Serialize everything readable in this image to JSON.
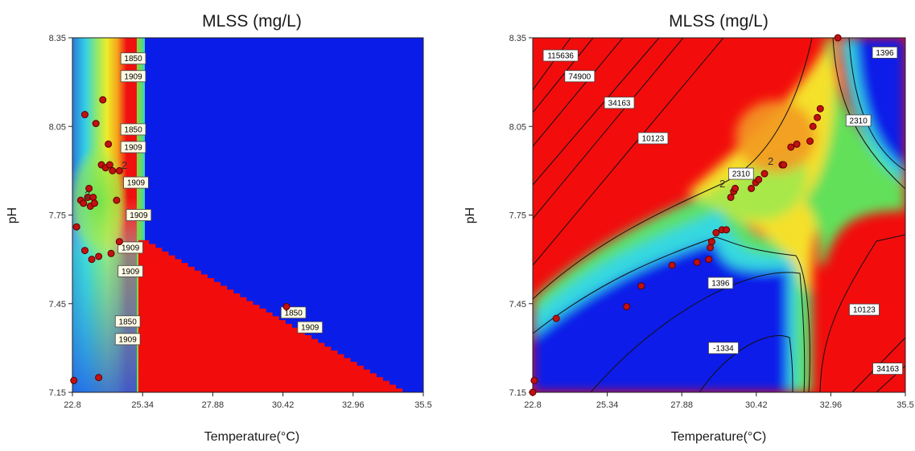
{
  "chart_data": [
    {
      "type": "heatmap",
      "title": "MLSS (mg/L)",
      "xlabel": "Temperature(°C)",
      "ylabel": "pH",
      "xlim": [
        22.8,
        35.5
      ],
      "ylim": [
        7.15,
        8.35
      ],
      "x_ticks": [
        "22.8",
        "25.34",
        "27.88",
        "30.42",
        "32.96",
        "35.5"
      ],
      "y_ticks": [
        "7.15",
        "7.45",
        "7.75",
        "8.05",
        "8.35"
      ],
      "contour_labels": [
        {
          "text": "1850",
          "x": 25.0,
          "y": 8.28
        },
        {
          "text": "1909",
          "x": 25.0,
          "y": 8.22
        },
        {
          "text": "1850",
          "x": 25.0,
          "y": 8.04
        },
        {
          "text": "1909",
          "x": 25.0,
          "y": 7.98
        },
        {
          "text": "1909",
          "x": 25.1,
          "y": 7.86
        },
        {
          "text": "1909",
          "x": 25.2,
          "y": 7.75
        },
        {
          "text": "1909",
          "x": 24.9,
          "y": 7.64
        },
        {
          "text": "1909",
          "x": 24.9,
          "y": 7.56
        },
        {
          "text": "1850",
          "x": 30.8,
          "y": 7.42
        },
        {
          "text": "1909",
          "x": 31.4,
          "y": 7.37
        },
        {
          "text": "1850",
          "x": 24.8,
          "y": 7.39
        },
        {
          "text": "1909",
          "x": 24.8,
          "y": 7.33
        }
      ],
      "points": [
        {
          "x": 22.85,
          "y": 7.19
        },
        {
          "x": 22.95,
          "y": 7.71
        },
        {
          "x": 23.1,
          "y": 7.8
        },
        {
          "x": 23.2,
          "y": 7.79
        },
        {
          "x": 23.35,
          "y": 7.81
        },
        {
          "x": 23.4,
          "y": 7.84
        },
        {
          "x": 23.45,
          "y": 7.78
        },
        {
          "x": 23.55,
          "y": 7.81
        },
        {
          "x": 23.6,
          "y": 7.79
        },
        {
          "x": 23.25,
          "y": 8.09
        },
        {
          "x": 23.65,
          "y": 8.06
        },
        {
          "x": 23.9,
          "y": 8.14
        },
        {
          "x": 24.1,
          "y": 7.99
        },
        {
          "x": 23.85,
          "y": 7.92
        },
        {
          "x": 24.0,
          "y": 7.91
        },
        {
          "x": 24.15,
          "y": 7.92
        },
        {
          "x": 24.25,
          "y": 7.9
        },
        {
          "x": 24.5,
          "y": 7.9
        },
        {
          "x": 24.4,
          "y": 7.8
        },
        {
          "x": 23.25,
          "y": 7.63
        },
        {
          "x": 23.5,
          "y": 7.6
        },
        {
          "x": 23.75,
          "y": 7.61
        },
        {
          "x": 24.2,
          "y": 7.62
        },
        {
          "x": 24.5,
          "y": 7.66
        },
        {
          "x": 23.75,
          "y": 7.2
        },
        {
          "x": 30.55,
          "y": 7.44
        }
      ],
      "annotations": [
        "2",
        "2"
      ],
      "colors": {
        "low": "#0a1de8",
        "high": "#f20c0c"
      }
    },
    {
      "type": "heatmap",
      "title": "MLSS (mg/L)",
      "xlabel": "Temperature(°C)",
      "ylabel": "pH",
      "xlim": [
        22.8,
        35.5
      ],
      "ylim": [
        7.15,
        8.35
      ],
      "x_ticks": [
        "22.8",
        "25.34",
        "27.88",
        "30.42",
        "32.96",
        "35.5"
      ],
      "y_ticks": [
        "7.15",
        "7.45",
        "7.75",
        "8.05",
        "8.35"
      ],
      "contour_labels": [
        {
          "text": "115636",
          "x": 23.75,
          "y": 8.29
        },
        {
          "text": "74900",
          "x": 24.4,
          "y": 8.22
        },
        {
          "text": "34163",
          "x": 25.75,
          "y": 8.13
        },
        {
          "text": "10123",
          "x": 26.9,
          "y": 8.01
        },
        {
          "text": "2310",
          "x": 29.9,
          "y": 7.89
        },
        {
          "text": "2310",
          "x": 33.9,
          "y": 8.07
        },
        {
          "text": "1396",
          "x": 34.8,
          "y": 8.3
        },
        {
          "text": "1396",
          "x": 29.2,
          "y": 7.52
        },
        {
          "text": "-1334",
          "x": 29.3,
          "y": 7.3
        },
        {
          "text": "10123",
          "x": 34.1,
          "y": 7.43
        },
        {
          "text": "34163",
          "x": 34.9,
          "y": 7.23
        }
      ],
      "points": [
        {
          "x": 22.8,
          "y": 7.15
        },
        {
          "x": 22.85,
          "y": 7.19
        },
        {
          "x": 23.6,
          "y": 7.4
        },
        {
          "x": 26.0,
          "y": 7.44
        },
        {
          "x": 26.5,
          "y": 7.51
        },
        {
          "x": 27.55,
          "y": 7.58
        },
        {
          "x": 28.4,
          "y": 7.59
        },
        {
          "x": 28.8,
          "y": 7.6
        },
        {
          "x": 28.85,
          "y": 7.64
        },
        {
          "x": 28.9,
          "y": 7.66
        },
        {
          "x": 29.05,
          "y": 7.69
        },
        {
          "x": 29.25,
          "y": 7.7
        },
        {
          "x": 29.4,
          "y": 7.7
        },
        {
          "x": 29.55,
          "y": 7.81
        },
        {
          "x": 29.65,
          "y": 7.83
        },
        {
          "x": 29.7,
          "y": 7.84
        },
        {
          "x": 30.25,
          "y": 7.84
        },
        {
          "x": 30.4,
          "y": 7.86
        },
        {
          "x": 30.5,
          "y": 7.87
        },
        {
          "x": 30.7,
          "y": 7.89
        },
        {
          "x": 31.3,
          "y": 7.92
        },
        {
          "x": 31.35,
          "y": 7.92
        },
        {
          "x": 31.6,
          "y": 7.98
        },
        {
          "x": 31.8,
          "y": 7.99
        },
        {
          "x": 32.25,
          "y": 8.0
        },
        {
          "x": 32.35,
          "y": 8.05
        },
        {
          "x": 32.5,
          "y": 8.08
        },
        {
          "x": 32.6,
          "y": 8.11
        },
        {
          "x": 33.2,
          "y": 8.35
        }
      ],
      "annotations": [
        "2",
        "2"
      ],
      "colors": {
        "low": "#0a1de8",
        "high": "#f20c0c"
      }
    }
  ]
}
